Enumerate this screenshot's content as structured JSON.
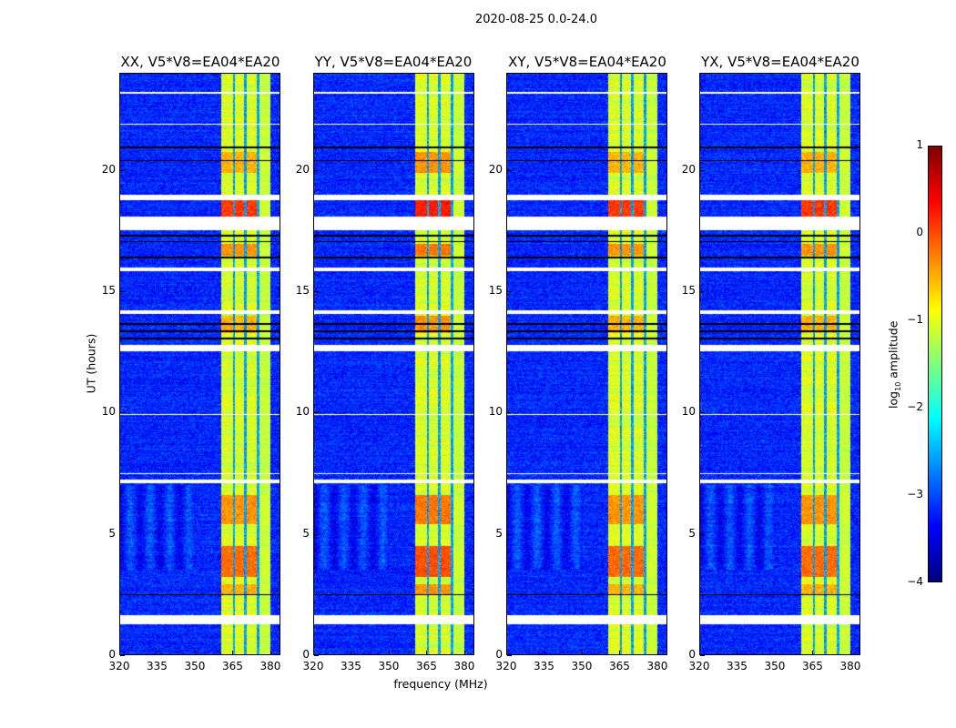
{
  "chart_data": {
    "type": "heatmap",
    "suptitle": "2020-08-25 0.0-24.0",
    "xlabel": "frequency (MHz)",
    "ylabel": "UT (hours)",
    "xlim": [
      320,
      384
    ],
    "ylim": [
      0,
      24
    ],
    "xticks": [
      320,
      335,
      350,
      365,
      380
    ],
    "yticks": [
      0,
      5,
      10,
      15,
      20
    ],
    "panels": [
      {
        "title": "XX, V5*V8=EA04*EA20"
      },
      {
        "title": "YY, V5*V8=EA04*EA20"
      },
      {
        "title": "XY, V5*V8=EA04*EA20"
      },
      {
        "title": "YX, V5*V8=EA04*EA20"
      }
    ],
    "colorbar": {
      "label_prefix": "log",
      "label_sub": "10",
      "label_suffix": " amplitude",
      "colormap": "jet",
      "range": [
        -4,
        1
      ],
      "ticks": [
        "1",
        "0",
        "−1",
        "−2",
        "−3",
        "−4"
      ]
    },
    "background_level_log10": -3.2,
    "signal_band_MHz": [
      360.5,
      380
    ],
    "channel_gaps_MHz": [
      365.5,
      370,
      375.2
    ],
    "flagged_hours_white": [
      [
        1.25,
        1.65
      ],
      [
        7.1,
        7.25
      ],
      [
        12.55,
        12.8
      ],
      [
        14.1,
        14.25
      ],
      [
        15.85,
        16.0
      ],
      [
        17.55,
        18.1
      ],
      [
        18.8,
        19.0
      ],
      [
        7.45,
        7.5
      ],
      [
        9.9,
        9.95
      ],
      [
        21.9,
        21.95
      ],
      [
        23.2,
        23.25
      ]
    ],
    "flagged_hours_black": [
      [
        2.45,
        2.5
      ],
      [
        13.05,
        13.1
      ],
      [
        13.35,
        13.4
      ],
      [
        13.65,
        13.7
      ],
      [
        16.4,
        16.45
      ],
      [
        17.05,
        17.1
      ],
      [
        17.3,
        17.35
      ],
      [
        20.4,
        20.45
      ],
      [
        20.95,
        21.0
      ]
    ],
    "bright_hours": [
      [
        2.5,
        2.9,
        -0.5
      ],
      [
        3.2,
        4.5,
        -0.15
      ],
      [
        5.4,
        6.6,
        -0.35
      ],
      [
        16.5,
        17.0,
        -0.35
      ],
      [
        17.9,
        18.8,
        0.1
      ],
      [
        19.9,
        20.8,
        -0.5
      ],
      [
        13.3,
        14.0,
        -0.5
      ]
    ]
  }
}
